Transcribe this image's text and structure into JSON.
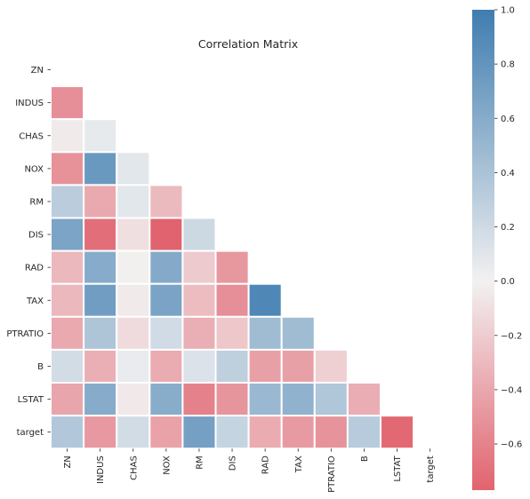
{
  "chart_data": {
    "type": "heatmap",
    "title": "Correlation Matrix",
    "variables": [
      "ZN",
      "INDUS",
      "CHAS",
      "NOX",
      "RM",
      "DIS",
      "RAD",
      "TAX",
      "PTRATIO",
      "B",
      "LSTAT",
      "target"
    ],
    "mask": "upper-triangle-including-diagonal",
    "values": [
      [],
      [
        -0.53
      ],
      [
        -0.04,
        0.06
      ],
      [
        -0.52,
        0.76,
        0.09
      ],
      [
        0.31,
        -0.39,
        0.09,
        -0.3
      ],
      [
        0.66,
        -0.71,
        -0.1,
        -0.77,
        0.21
      ],
      [
        -0.31,
        0.6,
        -0.01,
        0.61,
        -0.21,
        -0.49
      ],
      [
        -0.31,
        0.72,
        -0.04,
        0.67,
        -0.29,
        -0.53,
        0.91
      ],
      [
        -0.39,
        0.38,
        -0.12,
        0.19,
        -0.36,
        -0.23,
        0.46,
        0.46
      ],
      [
        0.18,
        -0.36,
        0.05,
        -0.38,
        0.13,
        0.29,
        -0.44,
        -0.44,
        -0.18
      ],
      [
        -0.41,
        0.6,
        -0.05,
        0.59,
        -0.61,
        -0.5,
        0.49,
        0.54,
        0.37,
        -0.37
      ],
      [
        0.36,
        -0.48,
        0.18,
        -0.43,
        0.7,
        0.25,
        -0.38,
        -0.47,
        -0.51,
        0.33,
        -0.74
      ]
    ],
    "colorbar": {
      "min": -0.77,
      "max": 1.0,
      "ticks": [
        1.0,
        0.8,
        0.6,
        0.4,
        0.2,
        0.0,
        -0.2,
        -0.4,
        -0.6
      ],
      "tick_labels": [
        "1.0",
        "0.8",
        "0.6",
        "0.4",
        "0.2",
        "0.0",
        "−0.2",
        "−0.4",
        "−0.6"
      ],
      "colors": {
        "negative": "#e1636f",
        "neutral": "#f2f1f1",
        "positive": "#3f7db0"
      }
    },
    "xlabel": "",
    "ylabel": ""
  }
}
